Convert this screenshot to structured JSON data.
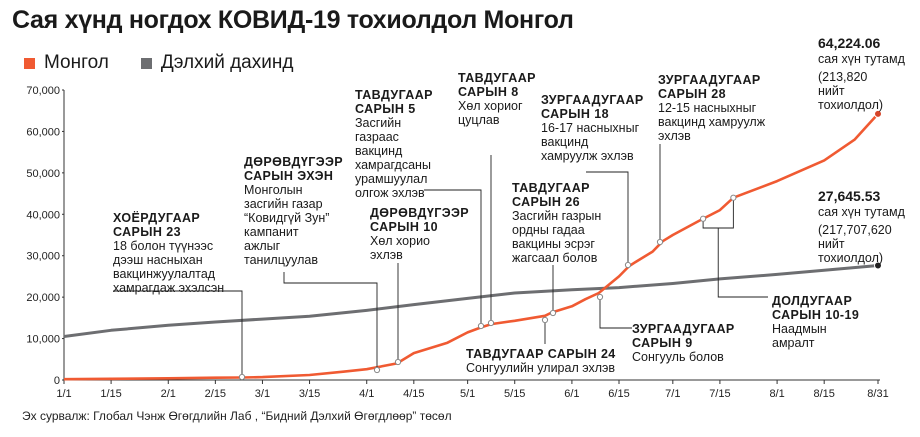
{
  "title": "Сая хүнд ногдох КОВИД-19 тохиолдол Монгол",
  "legend": [
    {
      "label": "Монгол",
      "color": "#f05a32"
    },
    {
      "label": "Дэлхий дахинд",
      "color": "#6d6e71"
    }
  ],
  "source": "Эх сурвалж: Глобал Чэнж Өгөгдлийн Лаб , “Бидний Дэлхий Өгөгдлөөр” төсөл",
  "chart_data": {
    "type": "line",
    "title": "Сая хүнд ногдох КОВИД-19 тохиолдол Монгол",
    "xlabel": "",
    "ylabel": "",
    "x_ticks": [
      "1/1",
      "1/15",
      "2/1",
      "2/15",
      "3/1",
      "3/15",
      "4/1",
      "4/15",
      "5/1",
      "5/15",
      "6/1",
      "6/15",
      "7/1",
      "7/15",
      "8/1",
      "8/15",
      "8/31"
    ],
    "y_ticks": [
      "0",
      "10,000",
      "20,000",
      "30,000",
      "40,000",
      "50,000",
      "60,000",
      "70,000"
    ],
    "ylim": [
      0,
      70000
    ],
    "grid": false,
    "legend_position": "top-left",
    "series": [
      {
        "name": "Монгол",
        "color": "#f05a32",
        "points": [
          [
            "1/1",
            200
          ],
          [
            "1/15",
            290
          ],
          [
            "2/1",
            400
          ],
          [
            "2/15",
            550
          ],
          [
            "2/23",
            600
          ],
          [
            "3/1",
            700
          ],
          [
            "3/15",
            1200
          ],
          [
            "3/25",
            2000
          ],
          [
            "4/1",
            2600
          ],
          [
            "4/10",
            4000
          ],
          [
            "4/15",
            6500
          ],
          [
            "4/25",
            9000
          ],
          [
            "5/1",
            11500
          ],
          [
            "5/5",
            12700
          ],
          [
            "5/8",
            13500
          ],
          [
            "5/15",
            14300
          ],
          [
            "5/24",
            15500
          ],
          [
            "5/26",
            16300
          ],
          [
            "6/1",
            17800
          ],
          [
            "6/5",
            19500
          ],
          [
            "6/9",
            21000
          ],
          [
            "6/15",
            25000
          ],
          [
            "6/18",
            27500
          ],
          [
            "6/20",
            28500
          ],
          [
            "6/25",
            31000
          ],
          [
            "6/28",
            33500
          ],
          [
            "7/1",
            35000
          ],
          [
            "7/9",
            38500
          ],
          [
            "7/15",
            41000
          ],
          [
            "7/19",
            44000
          ],
          [
            "8/1",
            48000
          ],
          [
            "8/15",
            53000
          ],
          [
            "8/24",
            58000
          ],
          [
            "8/31",
            64224.06
          ]
        ]
      },
      {
        "name": "Дэлхий дахинд",
        "color": "#6d6e71",
        "points": [
          [
            "1/1",
            10500
          ],
          [
            "1/15",
            12000
          ],
          [
            "2/1",
            13200
          ],
          [
            "2/15",
            14000
          ],
          [
            "3/1",
            14700
          ],
          [
            "3/15",
            15400
          ],
          [
            "4/1",
            16800
          ],
          [
            "4/15",
            18200
          ],
          [
            "5/1",
            19700
          ],
          [
            "5/15",
            21000
          ],
          [
            "6/1",
            21800
          ],
          [
            "6/15",
            22300
          ],
          [
            "7/1",
            23300
          ],
          [
            "7/15",
            24400
          ],
          [
            "8/1",
            25500
          ],
          [
            "8/15",
            26500
          ],
          [
            "8/31",
            27645.53
          ]
        ]
      }
    ],
    "end_labels": [
      {
        "value": "64,224.06",
        "lines": [
          "сая хүн тутамд",
          "(213,820",
          "нийт",
          "тохиолдол)"
        ]
      },
      {
        "value": "27,645.53",
        "lines": [
          "сая хүн тутамд",
          "(217,707,620",
          "нийт",
          "тохиолдол)"
        ]
      }
    ],
    "annotations": [
      {
        "head": [
          "ХОЁРДУГААР",
          "САРЫН 23"
        ],
        "body": [
          "18 болон түүнээс",
          "дээш насныхан",
          "вакцинжуулалтад",
          "хамрагдаж эхэлсэн"
        ],
        "date": "2/23"
      },
      {
        "head": [
          "ДӨРӨВДҮГЭЭР",
          "САРЫН ЭХЭН"
        ],
        "body": [
          "Монголын",
          "засгийн газар",
          "“Ковидгүй Зун”",
          "кампанит",
          "ажлыг",
          "танилцуулав"
        ],
        "date": "4/1"
      },
      {
        "head": [
          "ТАВДУГААР",
          "САРЫН 5"
        ],
        "body": [
          "Засгийн",
          "газраас",
          "вакцинд",
          "хамрагдсаны",
          "урамшуулал",
          "олгож эхлэв"
        ],
        "date": "5/5"
      },
      {
        "head": [
          "ДӨРӨВДҮГЭЭР",
          "САРЫН 10"
        ],
        "body": [
          "Хөл хорио",
          "эхлэв"
        ],
        "date": "4/10"
      },
      {
        "head": [
          "ТАВДУГААР",
          "САРЫН 8"
        ],
        "body": [
          "Хөл хориог",
          "цуцлав"
        ],
        "date": "5/8"
      },
      {
        "head": [
          "ЗУРГААДУГААР",
          "САРЫН 18"
        ],
        "body": [
          "16-17 насныхныг",
          "вакцинд",
          "хамруулж эхлэв"
        ],
        "date": "6/18"
      },
      {
        "head": [
          "ТАВДУГААР",
          "САРЫН 26"
        ],
        "body": [
          "Засгийн газрын",
          "ордны гадаа",
          "вакцины эсрэг",
          "жагсаал болов"
        ],
        "date": "5/26"
      },
      {
        "head": [
          "ЗУРГААДУГААР",
          "САРЫН 28"
        ],
        "body": [
          "12-15 насныхныг",
          "вакцинд хамруулж",
          "эхлэв"
        ],
        "date": "6/28"
      },
      {
        "head": [
          "ТАВДУГААР САРЫН 24"
        ],
        "body": [
          "Сонгуулийн улирал эхлэв"
        ],
        "date": "5/24"
      },
      {
        "head": [
          "ЗУРГААДУГААР",
          "САРЫН 9"
        ],
        "body": [
          "Сонгууль болов"
        ],
        "date": "6/9"
      },
      {
        "head": [
          "ДОЛДУГААР",
          "САРЫН 10-19"
        ],
        "body": [
          "Наадмын",
          "амралт"
        ],
        "date": "7/10 – 7/19"
      }
    ]
  }
}
